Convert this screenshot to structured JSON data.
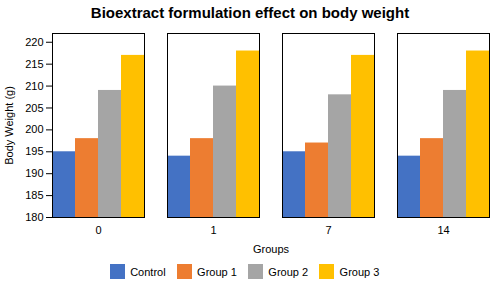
{
  "chart_data": {
    "type": "bar",
    "title": "Bioextract formulation effect on body weight",
    "xlabel": "Groups",
    "ylabel": "Body Weight (g)",
    "categories": [
      "0",
      "1",
      "7",
      "14"
    ],
    "series": [
      {
        "name": "Control",
        "color": "#4472C4",
        "values": [
          195,
          194,
          195,
          194
        ]
      },
      {
        "name": "Group 1",
        "color": "#ED7D31",
        "values": [
          198,
          198,
          197,
          198
        ]
      },
      {
        "name": "Group 2",
        "color": "#A5A5A5",
        "values": [
          209,
          210,
          208,
          209
        ]
      },
      {
        "name": "Group 3",
        "color": "#FFC000",
        "values": [
          217,
          218,
          217,
          218
        ]
      }
    ],
    "ylim": [
      180,
      222
    ],
    "yticks": [
      180,
      185,
      190,
      195,
      200,
      205,
      210,
      215,
      220
    ],
    "grid": false,
    "legend": "bottom"
  }
}
